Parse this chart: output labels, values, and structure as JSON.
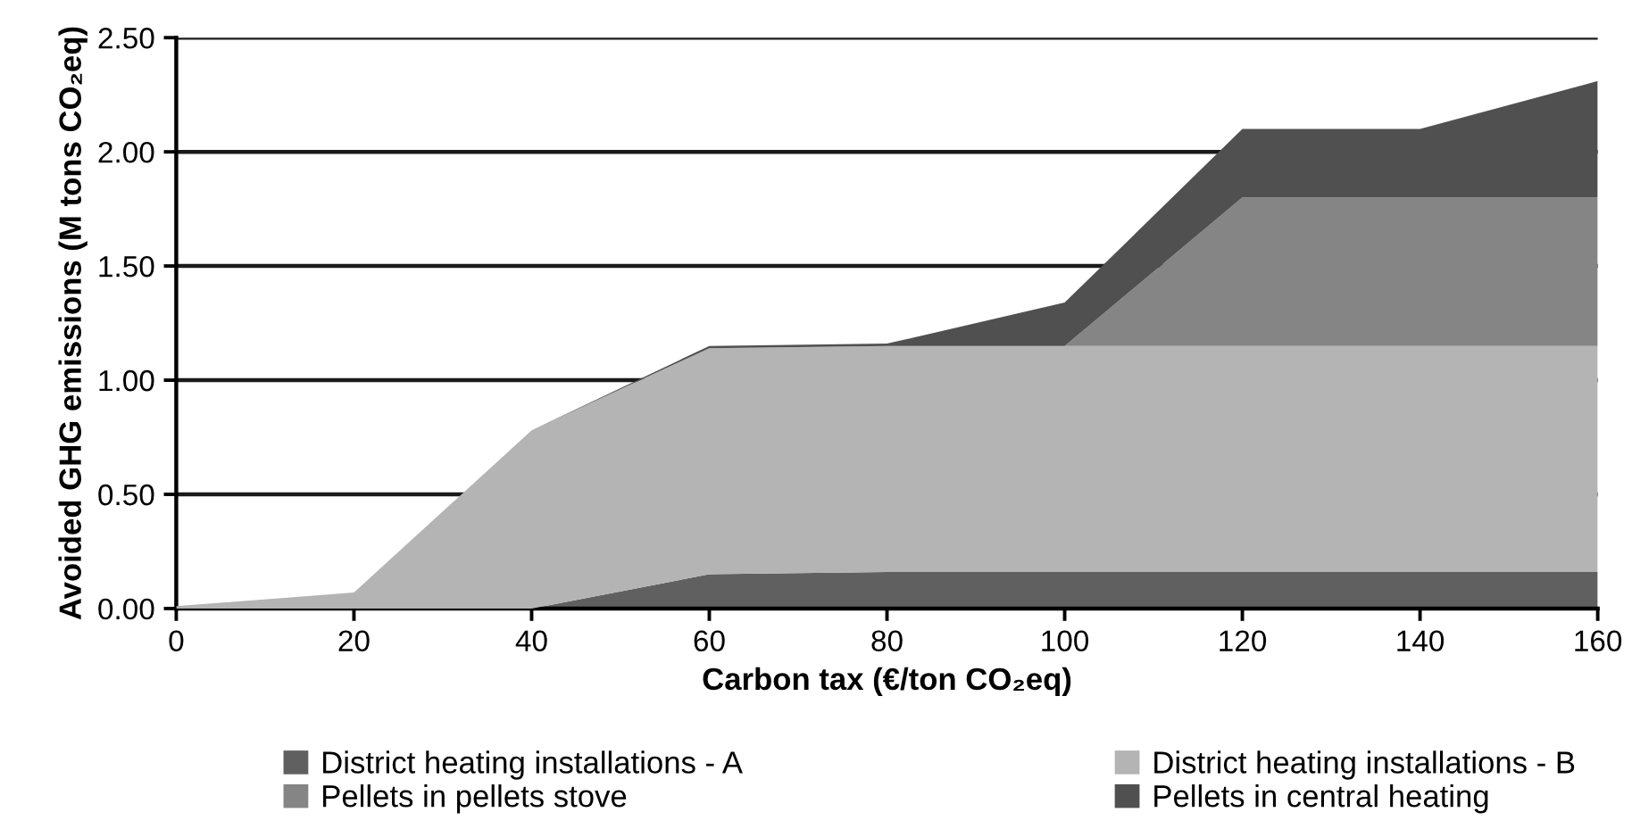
{
  "chart_data": {
    "type": "area",
    "stacked": true,
    "xlabel": "Carbon tax (€/ton CO₂eq)",
    "ylabel": "Avoided GHG emissions (M tons CO₂eq)",
    "x": [
      0,
      20,
      40,
      60,
      80,
      100,
      120,
      140,
      160
    ],
    "series": [
      {
        "name": "District heating installations - A",
        "color": "#606060",
        "values": [
          0,
          0,
          0,
          0.15,
          0.16,
          0.16,
          0.16,
          0.16,
          0.16
        ]
      },
      {
        "name": "District heating installations - B",
        "color": "#b4b4b4",
        "values": [
          0.01,
          0.07,
          0.78,
          0.99,
          0.99,
          0.99,
          0.99,
          0.99,
          0.99
        ]
      },
      {
        "name": "Pellets in pellets stove",
        "color": "#858585",
        "values": [
          0,
          0,
          0,
          0,
          0,
          0,
          0.65,
          0.65,
          0.65
        ]
      },
      {
        "name": "Pellets in central heating",
        "color": "#505050",
        "values": [
          0,
          0,
          0,
          0.01,
          0.01,
          0.19,
          0.3,
          0.3,
          0.51
        ]
      }
    ],
    "xlim": [
      0,
      160
    ],
    "xticks": [
      0,
      20,
      40,
      60,
      80,
      100,
      120,
      140,
      160
    ],
    "ylim": [
      0,
      2.5
    ],
    "yticks": [
      {
        "value": 0,
        "label": "0.00"
      },
      {
        "value": 0.5,
        "label": "0.50"
      },
      {
        "value": 1,
        "label": "1.00"
      },
      {
        "value": 1.5,
        "label": "1.50"
      },
      {
        "value": 2,
        "label": "2.00"
      },
      {
        "value": 2.5,
        "label": "2.50"
      }
    ],
    "grid": "y",
    "legend": "bottom"
  }
}
